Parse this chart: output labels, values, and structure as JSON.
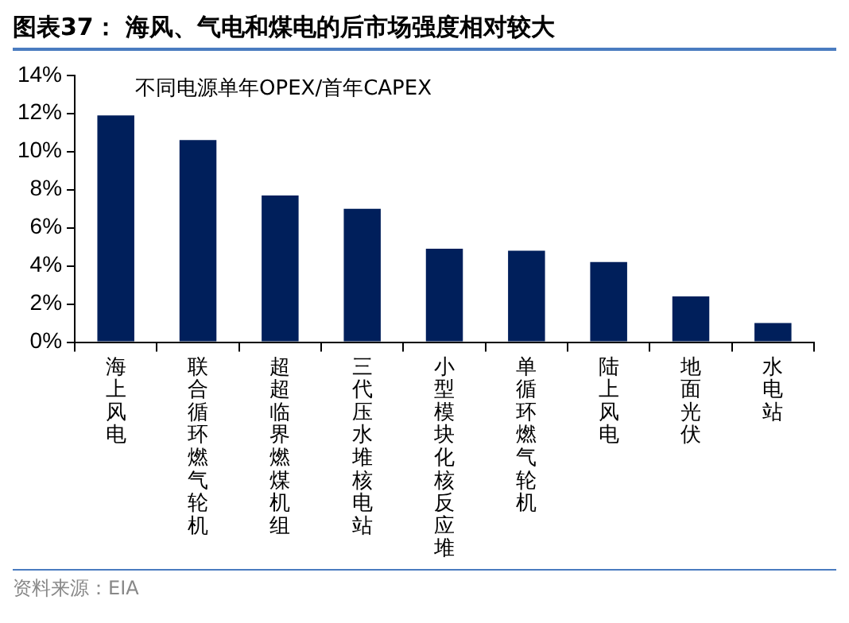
{
  "chart_data": {
    "type": "bar",
    "title": "图表37： 海风、气电和煤电的后市场强度相对较大",
    "subtitle": "不同电源单年OPEX/首年CAPEX",
    "categories": [
      "海上风电",
      "联合循环燃气轮机",
      "超超临界燃煤机组",
      "三代压水堆核电站",
      "小型模块化核反应堆",
      "单循环燃气轮机",
      "陆上风电",
      "地面光伏",
      "水电站"
    ],
    "values": [
      11.9,
      10.6,
      7.7,
      7.0,
      4.9,
      4.8,
      4.2,
      2.4,
      1.0
    ],
    "color": "#001f5b",
    "ylim": [
      0,
      14
    ],
    "yticks": [
      {
        "value": 0,
        "label": "0%"
      },
      {
        "value": 2,
        "label": "2%"
      },
      {
        "value": 4,
        "label": "4%"
      },
      {
        "value": 6,
        "label": "6%"
      },
      {
        "value": 8,
        "label": "8%"
      },
      {
        "value": 10,
        "label": "10%"
      },
      {
        "value": 12,
        "label": "12%"
      },
      {
        "value": 14,
        "label": "14%"
      }
    ],
    "grid": false,
    "legend": false,
    "annotations": [
      "资料来源：EIA"
    ]
  }
}
